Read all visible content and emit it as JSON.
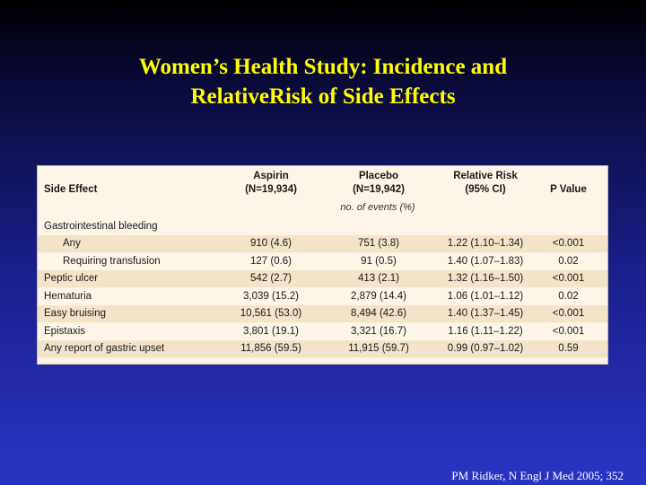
{
  "title": {
    "line1": "Women’s Health Study: Incidence and",
    "line2": "RelativeRisk of Side Effects"
  },
  "table": {
    "headers": {
      "side_effect": "Side Effect",
      "aspirin": "Aspirin",
      "aspirin_n": "(N=19,934)",
      "placebo": "Placebo",
      "placebo_n": "(N=19,942)",
      "rr": "Relative Risk",
      "rr_ci": "(95% CI)",
      "p_value": "P Value"
    },
    "units_row": "no. of events (%)",
    "rows": [
      {
        "label": "Gastrointestinal bleeding",
        "aspirin": "",
        "placebo": "",
        "rr": "",
        "p": ""
      },
      {
        "label": "Any",
        "aspirin": "910 (4.6)",
        "placebo": "751 (3.8)",
        "rr": "1.22 (1.10–1.34)",
        "p": "<0.001"
      },
      {
        "label": "Requiring transfusion",
        "aspirin": "127 (0.6)",
        "placebo": "91 (0.5)",
        "rr": "1.40 (1.07–1.83)",
        "p": "0.02"
      },
      {
        "label": "Peptic ulcer",
        "aspirin": "542 (2.7)",
        "placebo": "413 (2.1)",
        "rr": "1.32 (1.16–1.50)",
        "p": "<0.001"
      },
      {
        "label": "Hematuria",
        "aspirin": "3,039 (15.2)",
        "placebo": "2,879 (14.4)",
        "rr": "1.06 (1.01–1.12)",
        "p": "0.02"
      },
      {
        "label": "Easy bruising",
        "aspirin": "10,561 (53.0)",
        "placebo": "8,494 (42.6)",
        "rr": "1.40 (1.37–1.45)",
        "p": "<0.001"
      },
      {
        "label": "Epistaxis",
        "aspirin": "3,801 (19.1)",
        "placebo": "3,321 (16.7)",
        "rr": "1.16 (1.11–1.22)",
        "p": "<0.001"
      },
      {
        "label": "Any report of gastric upset",
        "aspirin": "11,856 (59.5)",
        "placebo": "11,915 (59.7)",
        "rr": "0.99 (0.97–1.02)",
        "p": "0.59"
      }
    ]
  },
  "citation": "PM Ridker, N Engl J Med 2005; 352",
  "colors": {
    "title": "#ffff00",
    "table_bg": "#fdf5e8",
    "row_shade": "#f3e4c9"
  }
}
